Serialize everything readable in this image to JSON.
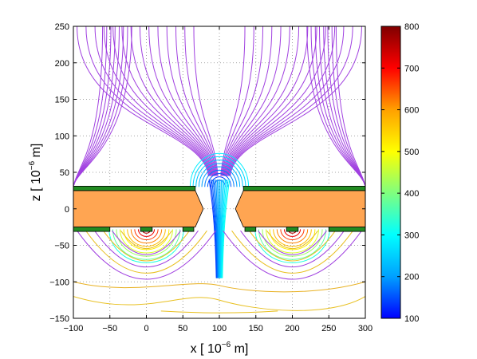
{
  "chart_data": {
    "type": "contour",
    "xlabel_base": "x [ 10",
    "xlabel_exp": "−6",
    "xlabel_unit": " m]",
    "ylabel_base": "z [ 10",
    "ylabel_exp": "−6",
    "ylabel_unit": " m]",
    "xlim": [
      -100,
      300
    ],
    "ylim": [
      -150,
      250
    ],
    "xticks": [
      "−100",
      "−50",
      "0",
      "50",
      "100",
      "150",
      "200",
      "250",
      "300"
    ],
    "xtick_values": [
      -100,
      -50,
      0,
      50,
      100,
      150,
      200,
      250,
      300
    ],
    "yticks": [
      "250",
      "200",
      "150",
      "100",
      "50",
      "0",
      "−50",
      "−100",
      "−150"
    ],
    "ytick_values": [
      250,
      200,
      150,
      100,
      50,
      0,
      -50,
      -100,
      -150
    ],
    "grid": true,
    "colorbar": {
      "range": [
        100,
        800
      ],
      "ticks": [
        "800",
        "700",
        "600",
        "500",
        "400",
        "300",
        "200",
        "100"
      ],
      "tick_values": [
        800,
        700,
        600,
        500,
        400,
        300,
        200,
        100
      ],
      "colormap": [
        "#0000ff",
        "#00a0ff",
        "#00ffff",
        "#7fff7f",
        "#ffff00",
        "#ffa000",
        "#ff0000",
        "#800000"
      ]
    },
    "structures": {
      "substrate_color": "#ffa552",
      "electrode_color": "#228b22",
      "slab_x": [
        -100,
        300
      ],
      "slab_z": [
        -25,
        25
      ],
      "hole_center_x": 100,
      "electrode_thickness": 6,
      "bottom_pads_x": [
        [
          -100,
          -50
        ],
        [
          -8,
          8
        ],
        [
          50,
          65
        ],
        [
          135,
          150
        ],
        [
          192,
          208
        ],
        [
          250,
          300
        ]
      ]
    }
  }
}
